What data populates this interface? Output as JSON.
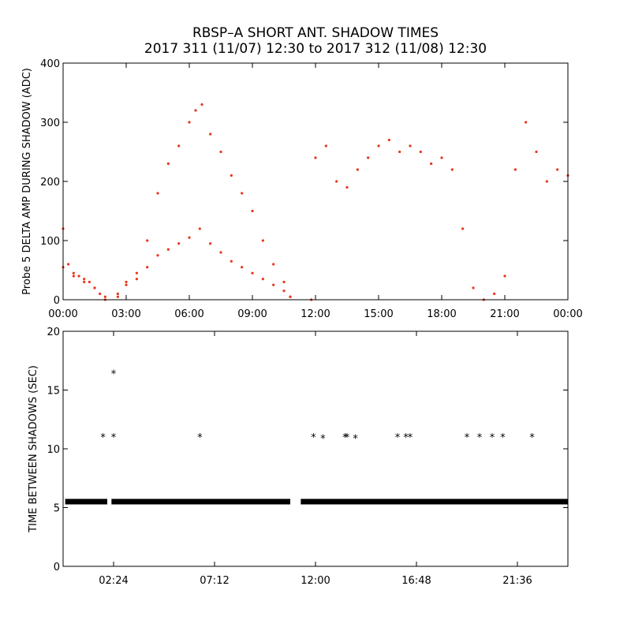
{
  "title": "RBSP–A SHORT ANT. SHADOW TIMES",
  "subtitle": "2017 311 (11/07) 12:30 to 2017 312 (11/08) 12:30",
  "colors": {
    "top_points": "#e8361c",
    "bottom_points": "#000000",
    "axes": "#000000"
  },
  "chart_data": [
    {
      "type": "scatter",
      "ylabel": "Probe 5 DELTA AMP DURING SHADOW (ADC)",
      "xlabel": "",
      "x_unit": "hours",
      "xlim": [
        0,
        24
      ],
      "ylim": [
        0,
        400
      ],
      "x_ticks": [
        0,
        3,
        6,
        9,
        12,
        15,
        18,
        21,
        24
      ],
      "x_tick_labels": [
        "00:00",
        "03:00",
        "06:00",
        "09:00",
        "12:00",
        "15:00",
        "18:00",
        "21:00",
        "00:00"
      ],
      "y_ticks": [
        0,
        100,
        200,
        300,
        400
      ],
      "y_tick_labels": [
        "0",
        "100",
        "200",
        "300",
        "400"
      ],
      "series": [
        {
          "x": [
            0.0,
            0.25,
            0.5,
            0.75,
            1.0,
            1.25,
            1.5,
            1.75,
            2.0,
            2.6,
            3.0,
            3.5,
            4.0,
            4.5,
            5.0,
            5.5,
            6.0,
            6.3,
            6.6,
            7.0,
            7.5,
            8.0,
            8.5,
            9.0,
            9.5,
            10.0,
            10.5,
            10.8,
            11.8,
            12.0,
            12.5,
            13.0,
            13.5,
            14.0,
            14.5,
            15.0,
            15.5,
            16.0,
            16.5,
            17.0,
            17.5,
            18.0,
            18.5,
            19.0,
            19.5,
            20.0,
            20.5,
            21.0,
            21.5,
            22.0,
            22.5,
            23.0,
            23.5,
            24.0
          ],
          "y": [
            120,
            60,
            45,
            40,
            35,
            30,
            20,
            10,
            0,
            5,
            30,
            45,
            100,
            180,
            230,
            260,
            300,
            320,
            330,
            280,
            250,
            210,
            180,
            150,
            100,
            60,
            30,
            5,
            0,
            240,
            260,
            200,
            190,
            220,
            240,
            260,
            270,
            250,
            260,
            250,
            230,
            240,
            220,
            120,
            20,
            0,
            10,
            40,
            220,
            300,
            250,
            200,
            220,
            210
          ]
        },
        {
          "x": [
            0.0,
            0.5,
            1.0,
            1.5,
            2.0,
            2.6,
            3.0,
            3.5,
            4.0,
            4.5,
            5.0,
            5.5,
            6.0,
            6.5,
            7.0,
            7.5,
            8.0,
            8.5,
            9.0,
            9.5,
            10.0,
            10.5,
            10.8
          ],
          "y": [
            55,
            40,
            30,
            20,
            5,
            10,
            25,
            35,
            55,
            75,
            85,
            95,
            105,
            120,
            95,
            80,
            65,
            55,
            45,
            35,
            25,
            15,
            5
          ]
        }
      ]
    },
    {
      "type": "scatter",
      "ylabel": "TIME BETWEEN SHADOWS (SEC)",
      "xlabel": "",
      "x_unit": "hours",
      "xlim": [
        0,
        24
      ],
      "ylim": [
        0,
        20
      ],
      "x_ticks": [
        2.4,
        7.2,
        12.0,
        16.8,
        21.6
      ],
      "x_tick_labels": [
        "02:24",
        "07:12",
        "12:00",
        "16:48",
        "21:36"
      ],
      "y_ticks": [
        0,
        5,
        10,
        15,
        20
      ],
      "y_tick_labels": [
        "0",
        "5",
        "10",
        "15",
        "20"
      ],
      "baseline": {
        "value": 5.5,
        "segments": [
          [
            0.1,
            2.1
          ],
          [
            2.3,
            10.8
          ],
          [
            11.3,
            24.0
          ]
        ]
      },
      "points": [
        {
          "x": 1.9,
          "y": 11
        },
        {
          "x": 2.4,
          "y": 11
        },
        {
          "x": 2.4,
          "y": 16.4
        },
        {
          "x": 6.5,
          "y": 11
        },
        {
          "x": 11.9,
          "y": 11
        },
        {
          "x": 12.35,
          "y": 10.9
        },
        {
          "x": 13.4,
          "y": 11
        },
        {
          "x": 13.5,
          "y": 11
        },
        {
          "x": 13.9,
          "y": 10.9
        },
        {
          "x": 15.9,
          "y": 11
        },
        {
          "x": 16.3,
          "y": 11
        },
        {
          "x": 16.5,
          "y": 11
        },
        {
          "x": 19.2,
          "y": 11
        },
        {
          "x": 19.8,
          "y": 11
        },
        {
          "x": 20.4,
          "y": 11
        },
        {
          "x": 20.9,
          "y": 11
        },
        {
          "x": 22.3,
          "y": 11
        }
      ]
    }
  ]
}
